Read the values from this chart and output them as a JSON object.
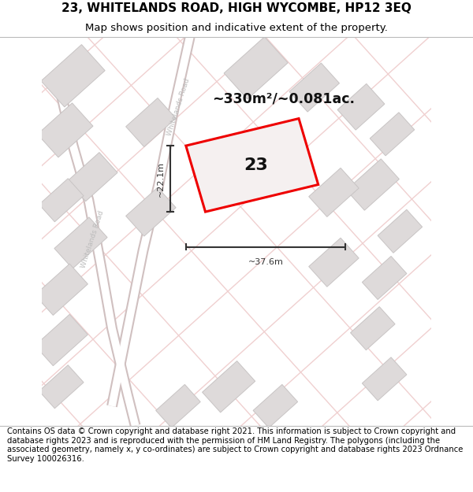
{
  "title_line1": "23, WHITELANDS ROAD, HIGH WYCOMBE, HP12 3EQ",
  "title_line2": "Map shows position and indicative extent of the property.",
  "footer_text": "Contains OS data © Crown copyright and database right 2021. This information is subject to Crown copyright and database rights 2023 and is reproduced with the permission of HM Land Registry. The polygons (including the associated geometry, namely x, y co-ordinates) are subject to Crown copyright and database rights 2023 Ordnance Survey 100026316.",
  "bg_color": "#ffffff",
  "road_color_light": "#f0d0d0",
  "building_fill": "#dedada",
  "building_edge": "#c8c4c4",
  "red_poly_color": "#ee0000",
  "red_poly_fill": "#f5f0f0",
  "measurement_color": "#333333",
  "label_23_color": "#111111",
  "area_text": "~330m²/~0.081ac.",
  "width_label": "~37.6m",
  "height_label": "~22.1m",
  "road_label_upper": "Whitelands Road",
  "road_label_lower": "Whitelands Road",
  "title_fontsize": 11,
  "subtitle_fontsize": 9.5,
  "footer_fontsize": 7.2,
  "road_label_color": "#bbbbbb",
  "road_line_color": "#d0c0c0",
  "road_lw": 1.0
}
